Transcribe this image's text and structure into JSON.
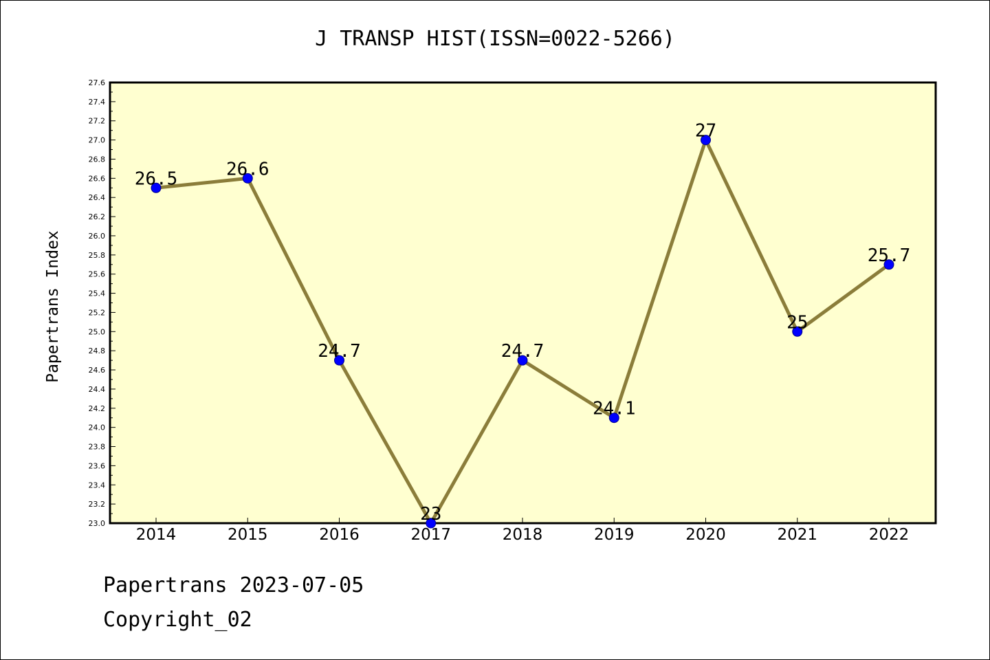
{
  "chart_data": {
    "type": "line",
    "title": "J TRANSP HIST(ISSN=0022-5266)",
    "xlabel": "",
    "ylabel": "Papertrans Index",
    "categories": [
      "2014",
      "2015",
      "2016",
      "2017",
      "2018",
      "2019",
      "2020",
      "2021",
      "2022"
    ],
    "series": [
      {
        "values": [
          26.5,
          26.6,
          24.7,
          23,
          24.7,
          24.1,
          27,
          25,
          25.7
        ],
        "labels": [
          "26.5",
          "26.6",
          "24.7",
          "23",
          "24.7",
          "24.1",
          "27",
          "25",
          "25.7"
        ]
      }
    ],
    "ylim": [
      23.0,
      27.6
    ],
    "yticks": [
      "23.0",
      "23.2",
      "23.4",
      "23.6",
      "23.8",
      "24.0",
      "24.2",
      "24.4",
      "24.6",
      "24.8",
      "25.0",
      "25.2",
      "25.4",
      "25.6",
      "25.8",
      "26.0",
      "26.2",
      "26.4",
      "26.6",
      "26.8",
      "27.0",
      "27.2",
      "27.4",
      "27.6"
    ],
    "grid": false,
    "colors": {
      "plot_background": "#ffffd0",
      "line": "#8b7d3a",
      "marker": "#0000ff"
    }
  },
  "footer": {
    "line1": "Papertrans 2023-07-05",
    "line2": "Copyright_02"
  }
}
